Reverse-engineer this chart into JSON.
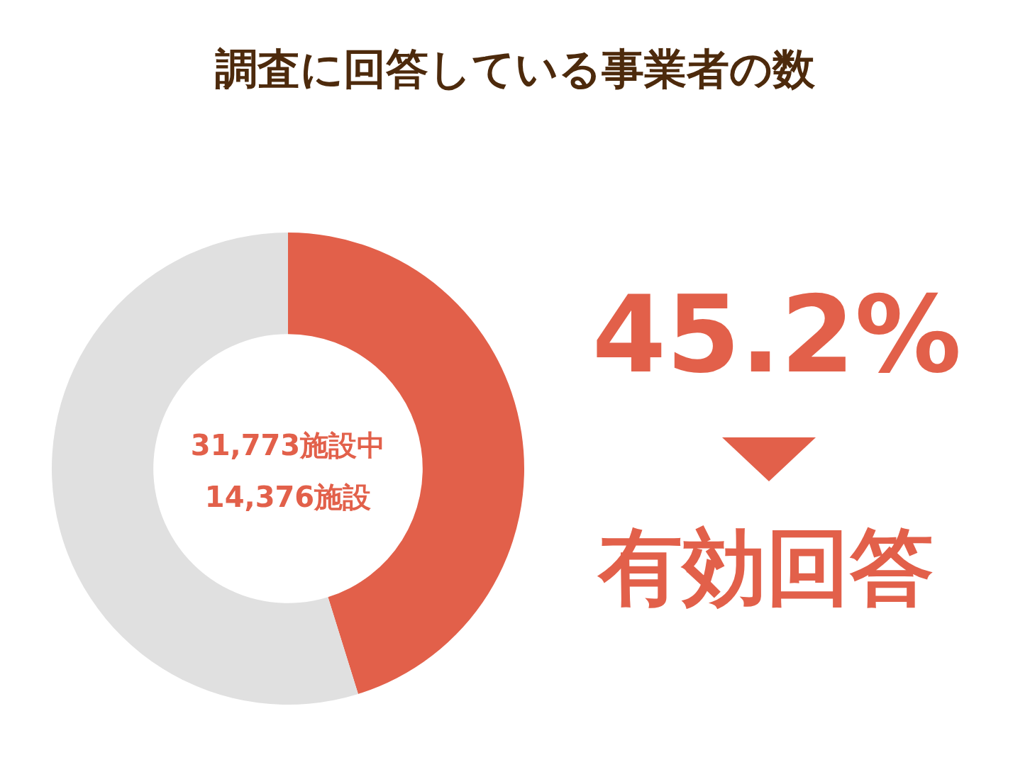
{
  "chart_data": {
    "type": "donut",
    "title": "調査に回答している事業者の数",
    "categories": [
      null,
      null
    ],
    "values": [
      45.2,
      54.8
    ],
    "colors": [
      "#e2604a",
      "#e0e0e0"
    ],
    "value_labels": [
      "45.2%",
      null
    ],
    "annotations": [
      "31,773施設中",
      "14,376施設",
      "有効回答"
    ],
    "legend": false
  }
}
